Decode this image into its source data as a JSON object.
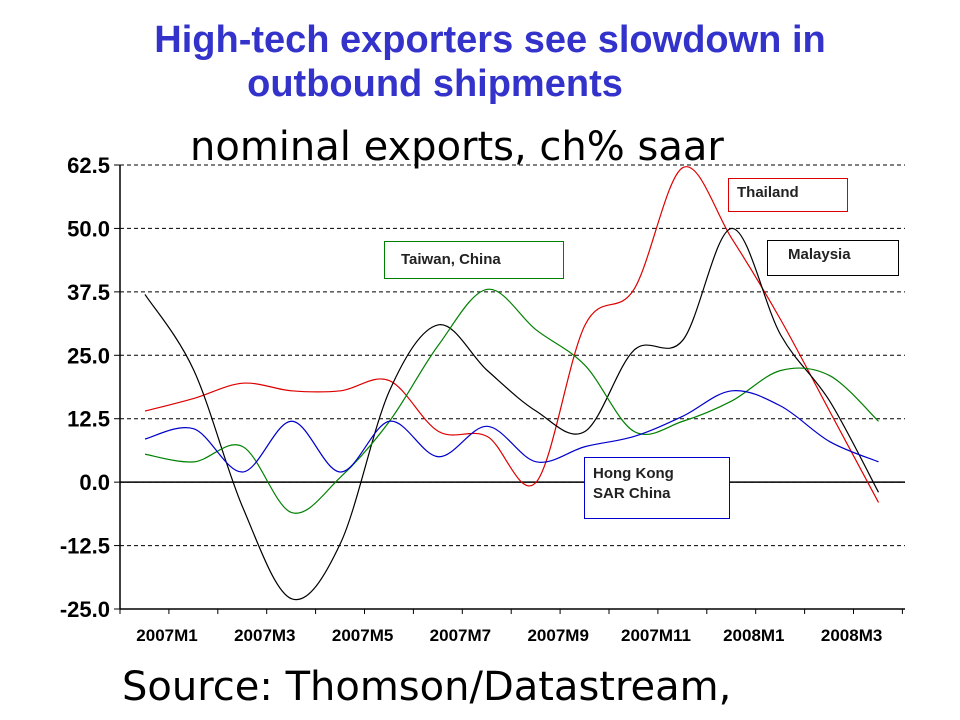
{
  "title_line1": "High-tech exporters see slowdown in",
  "title_line2": "outbound shipments",
  "subtitle": "nominal exports,  ch% saar",
  "source": "Source: Thomson/Datastream,",
  "chart_data": {
    "type": "line",
    "x": [
      "2007M1",
      "2007M2",
      "2007M3",
      "2007M4",
      "2007M5",
      "2007M6",
      "2007M7",
      "2007M8",
      "2007M9",
      "2007M10",
      "2007M11",
      "2007M12",
      "2008M1",
      "2008M2",
      "2008M3",
      "2008M4"
    ],
    "x_tick_labels": [
      "2007M1",
      "2007M3",
      "2007M5",
      "2007M7",
      "2007M9",
      "2007M11",
      "2008M1",
      "2008M3"
    ],
    "ylim": [
      -25,
      62.5
    ],
    "y_ticks": [
      "62.5",
      "50.0",
      "37.5",
      "25.0",
      "12.5",
      "0.0",
      "-12.5",
      "-25.0"
    ],
    "grid": "horizontal dashed",
    "series": [
      {
        "name": "Thailand",
        "color": "#dd0000",
        "values": [
          14,
          16.5,
          19.5,
          18,
          18,
          20,
          10,
          9,
          0,
          31,
          38,
          62,
          48,
          32,
          14,
          -4
        ]
      },
      {
        "name": "Malaysia",
        "color": "#000000",
        "values": [
          37,
          22,
          -5,
          -23,
          -12,
          18,
          31,
          22,
          14,
          10,
          26,
          28,
          50,
          29,
          16,
          -2
        ]
      },
      {
        "name": "Taiwan, China",
        "color": "#008000",
        "values": [
          5.5,
          4,
          7,
          -6,
          1,
          12,
          27,
          38,
          30,
          23,
          10,
          12,
          16,
          22,
          21,
          12
        ]
      },
      {
        "name": "Hong Kong SAR China",
        "color": "#0000cc",
        "values": [
          8.5,
          10.5,
          2,
          12,
          2,
          12,
          5,
          11,
          4,
          7,
          9,
          13,
          18,
          15,
          8,
          4
        ]
      }
    ]
  },
  "legend_labels": {
    "thailand": "Thailand",
    "malaysia": "Malaysia",
    "taiwan": "Taiwan, China",
    "hongkong_l1": "Hong Kong",
    "hongkong_l2": "SAR China"
  }
}
